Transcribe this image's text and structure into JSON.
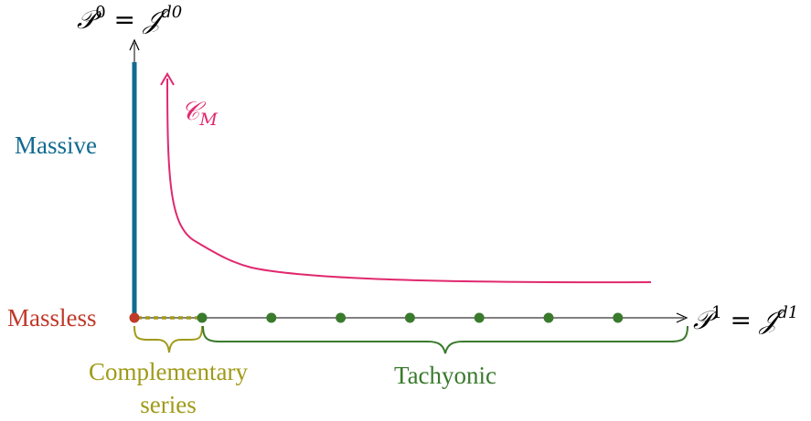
{
  "axes": {
    "vertical_label": {
      "base": "𝒫",
      "sup": "0",
      "eq": " = ",
      "rhs": "𝒥",
      "rhs_sup": "d0"
    },
    "horizontal_label": {
      "base": "𝒫",
      "sup": "1",
      "eq": " = ",
      "rhs": "𝒥",
      "rhs_sup": "d1"
    }
  },
  "contour": {
    "symbol": "𝒞",
    "subscript": "M",
    "color": "#e0286e"
  },
  "regions": {
    "massive": {
      "label": "Massive",
      "color": "#116a91"
    },
    "massless": {
      "label": "Massless",
      "color": "#c0392b"
    },
    "complementary": {
      "line1": "Complementary",
      "line2": "series",
      "color": "#a09a18"
    },
    "tachyonic": {
      "label": "Tachyonic",
      "color": "#3a7a2d"
    }
  },
  "tachyonic_points_count": 7
}
